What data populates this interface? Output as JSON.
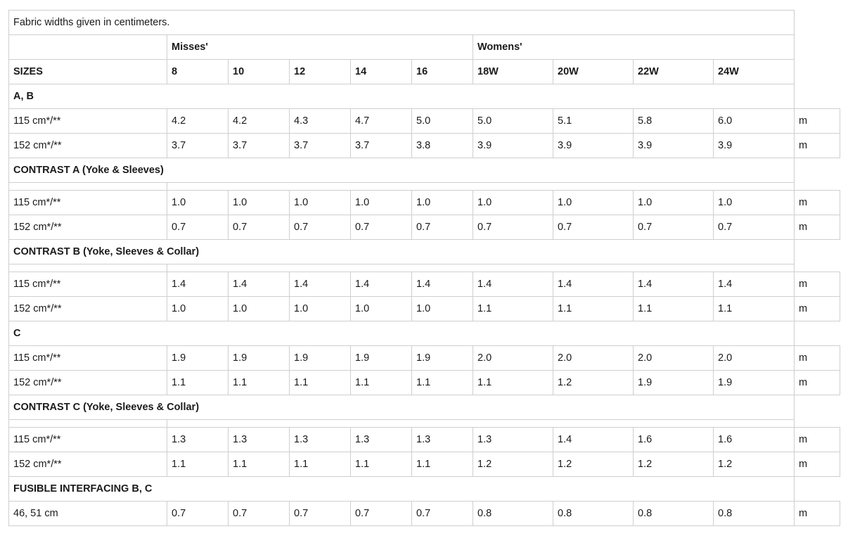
{
  "note": "Fabric widths given in centimeters.",
  "groups": [
    "Misses'",
    "Womens'"
  ],
  "sizes_label": "SIZES",
  "sizes": [
    "8",
    "10",
    "12",
    "14",
    "16",
    "18W",
    "20W",
    "22W",
    "24W"
  ],
  "unit": "m",
  "sections": [
    {
      "title": "A, B",
      "spacer": false,
      "rows": [
        {
          "label": "115 cm*/**",
          "values": [
            "4.2",
            "4.2",
            "4.3",
            "4.7",
            "5.0",
            "5.0",
            "5.1",
            "5.8",
            "6.0"
          ]
        },
        {
          "label": "152 cm*/**",
          "values": [
            "3.7",
            "3.7",
            "3.7",
            "3.7",
            "3.8",
            "3.9",
            "3.9",
            "3.9",
            "3.9"
          ]
        }
      ]
    },
    {
      "title": "CONTRAST A (Yoke & Sleeves)",
      "spacer": true,
      "rows": [
        {
          "label": "115 cm*/**",
          "values": [
            "1.0",
            "1.0",
            "1.0",
            "1.0",
            "1.0",
            "1.0",
            "1.0",
            "1.0",
            "1.0"
          ]
        },
        {
          "label": "152 cm*/**",
          "values": [
            "0.7",
            "0.7",
            "0.7",
            "0.7",
            "0.7",
            "0.7",
            "0.7",
            "0.7",
            "0.7"
          ]
        }
      ]
    },
    {
      "title": "CONTRAST B (Yoke, Sleeves & Collar)",
      "spacer": true,
      "rows": [
        {
          "label": "115 cm*/**",
          "values": [
            "1.4",
            "1.4",
            "1.4",
            "1.4",
            "1.4",
            "1.4",
            "1.4",
            "1.4",
            "1.4"
          ]
        },
        {
          "label": "152 cm*/**",
          "values": [
            "1.0",
            "1.0",
            "1.0",
            "1.0",
            "1.0",
            "1.1",
            "1.1",
            "1.1",
            "1.1"
          ]
        }
      ]
    },
    {
      "title": "C",
      "spacer": false,
      "rows": [
        {
          "label": "115 cm*/**",
          "values": [
            "1.9",
            "1.9",
            "1.9",
            "1.9",
            "1.9",
            "2.0",
            "2.0",
            "2.0",
            "2.0"
          ]
        },
        {
          "label": "152 cm*/**",
          "values": [
            "1.1",
            "1.1",
            "1.1",
            "1.1",
            "1.1",
            "1.1",
            "1.2",
            "1.9",
            "1.9"
          ]
        }
      ]
    },
    {
      "title": "CONTRAST C (Yoke, Sleeves & Collar)",
      "spacer": true,
      "rows": [
        {
          "label": "115 cm*/**",
          "values": [
            "1.3",
            "1.3",
            "1.3",
            "1.3",
            "1.3",
            "1.3",
            "1.4",
            "1.6",
            "1.6"
          ]
        },
        {
          "label": "152 cm*/**",
          "values": [
            "1.1",
            "1.1",
            "1.1",
            "1.1",
            "1.1",
            "1.2",
            "1.2",
            "1.2",
            "1.2"
          ]
        }
      ]
    },
    {
      "title": "FUSIBLE INTERFACING B, C",
      "spacer": false,
      "rows": [
        {
          "label": "46, 51 cm",
          "values": [
            "0.7",
            "0.7",
            "0.7",
            "0.7",
            "0.7",
            "0.8",
            "0.8",
            "0.8",
            "0.8"
          ]
        }
      ]
    }
  ]
}
